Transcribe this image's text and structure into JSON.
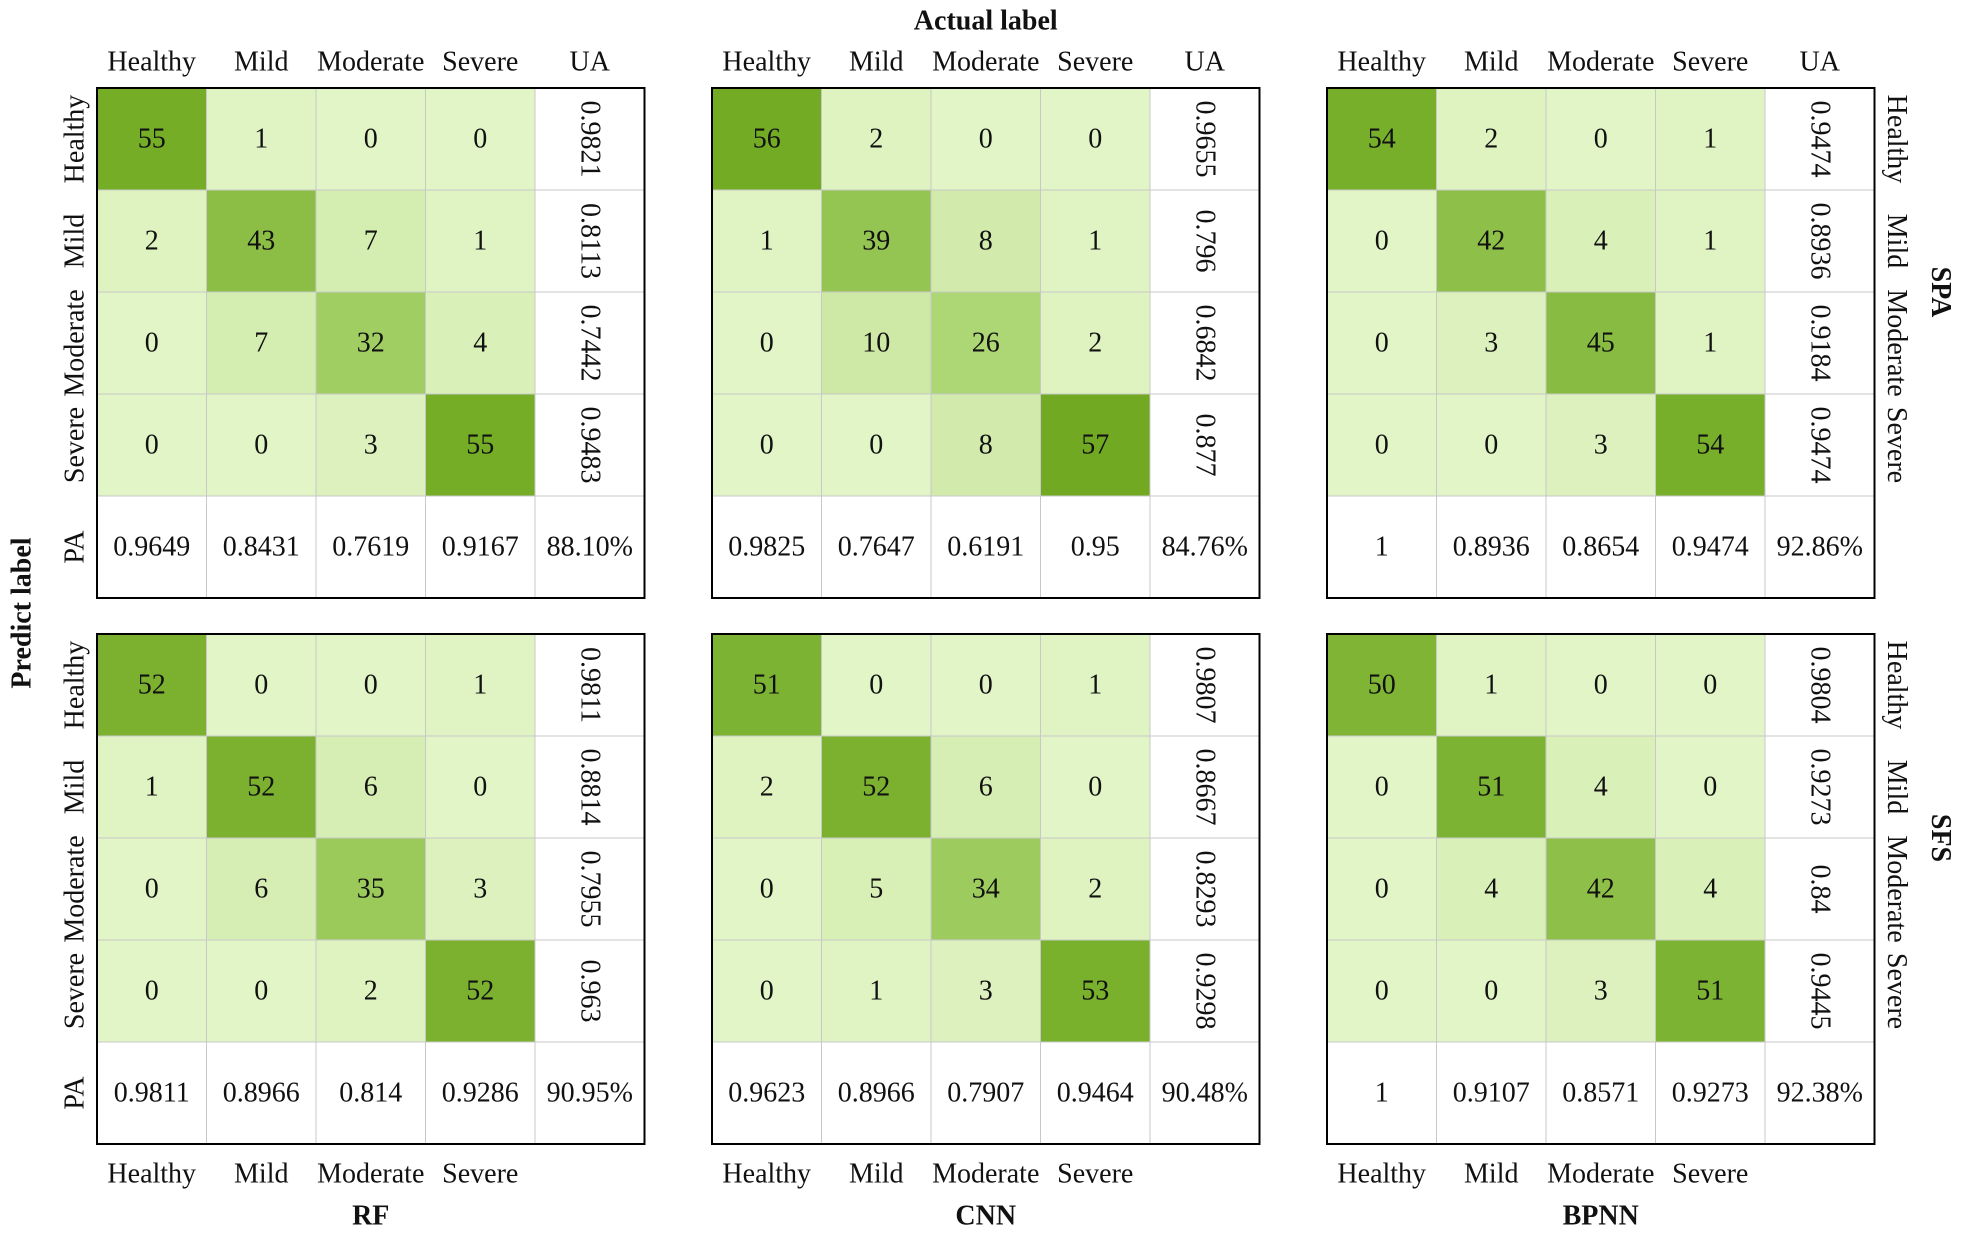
{
  "figure": {
    "actual_label": "Actual label",
    "predict_label": "Predict label",
    "classes": [
      "Healthy",
      "Mild",
      "Moderate",
      "Severe"
    ],
    "ua_header": "UA",
    "pa_label": "PA",
    "method_titles": [
      "RF",
      "CNN",
      "BPNN"
    ],
    "selection_titles": [
      "SPA",
      "SFS"
    ],
    "colors": {
      "low": "#e2f5c6",
      "mid": "#a8d36c",
      "high": "#71aa22",
      "border": "#000000",
      "grid": "#c8c8c8"
    }
  },
  "chart_data": [
    {
      "type": "table",
      "method": "RF",
      "selection": "SPA",
      "matrix": [
        [
          55,
          1,
          0,
          0
        ],
        [
          2,
          43,
          7,
          1
        ],
        [
          0,
          7,
          32,
          4
        ],
        [
          0,
          0,
          3,
          55
        ]
      ],
      "ua": [
        "0.9821",
        "0.8113",
        "0.7442",
        "0.9483"
      ],
      "pa": [
        "0.9649",
        "0.8431",
        "0.7619",
        "0.9167"
      ],
      "overall": "88.10%"
    },
    {
      "type": "table",
      "method": "CNN",
      "selection": "SPA",
      "matrix": [
        [
          56,
          2,
          0,
          0
        ],
        [
          1,
          39,
          8,
          1
        ],
        [
          0,
          10,
          26,
          2
        ],
        [
          0,
          0,
          8,
          57
        ]
      ],
      "ua": [
        "0.9655",
        "0.796",
        "0.6842",
        "0.877"
      ],
      "pa": [
        "0.9825",
        "0.7647",
        "0.6191",
        "0.95"
      ],
      "overall": "84.76%"
    },
    {
      "type": "table",
      "method": "BPNN",
      "selection": "SPA",
      "matrix": [
        [
          54,
          2,
          0,
          1
        ],
        [
          0,
          42,
          4,
          1
        ],
        [
          0,
          3,
          45,
          1
        ],
        [
          0,
          0,
          3,
          54
        ]
      ],
      "ua": [
        "0.9474",
        "0.8936",
        "0.9184",
        "0.9474"
      ],
      "pa": [
        "1",
        "0.8936",
        "0.8654",
        "0.9474"
      ],
      "overall": "92.86%"
    },
    {
      "type": "table",
      "method": "RF",
      "selection": "SFS",
      "matrix": [
        [
          52,
          0,
          0,
          1
        ],
        [
          1,
          52,
          6,
          0
        ],
        [
          0,
          6,
          35,
          3
        ],
        [
          0,
          0,
          2,
          52
        ]
      ],
      "ua": [
        "0.9811",
        "0.8814",
        "0.7955",
        "0.963"
      ],
      "pa": [
        "0.9811",
        "0.8966",
        "0.814",
        "0.9286"
      ],
      "overall": "90.95%"
    },
    {
      "type": "table",
      "method": "CNN",
      "selection": "SFS",
      "matrix": [
        [
          51,
          0,
          0,
          1
        ],
        [
          2,
          52,
          6,
          0
        ],
        [
          0,
          5,
          34,
          2
        ],
        [
          0,
          1,
          3,
          53
        ]
      ],
      "ua": [
        "0.9807",
        "0.8667",
        "0.8293",
        "0.9298"
      ],
      "pa": [
        "0.9623",
        "0.8966",
        "0.7907",
        "0.9464"
      ],
      "overall": "90.48%"
    },
    {
      "type": "table",
      "method": "BPNN",
      "selection": "SFS",
      "matrix": [
        [
          50,
          1,
          0,
          0
        ],
        [
          0,
          51,
          4,
          0
        ],
        [
          0,
          4,
          42,
          4
        ],
        [
          0,
          0,
          3,
          51
        ]
      ],
      "ua": [
        "0.9804",
        "0.9273",
        "0.84",
        "0.9445"
      ],
      "pa": [
        "1",
        "0.9107",
        "0.8571",
        "0.9273"
      ],
      "overall": "92.38%"
    }
  ]
}
